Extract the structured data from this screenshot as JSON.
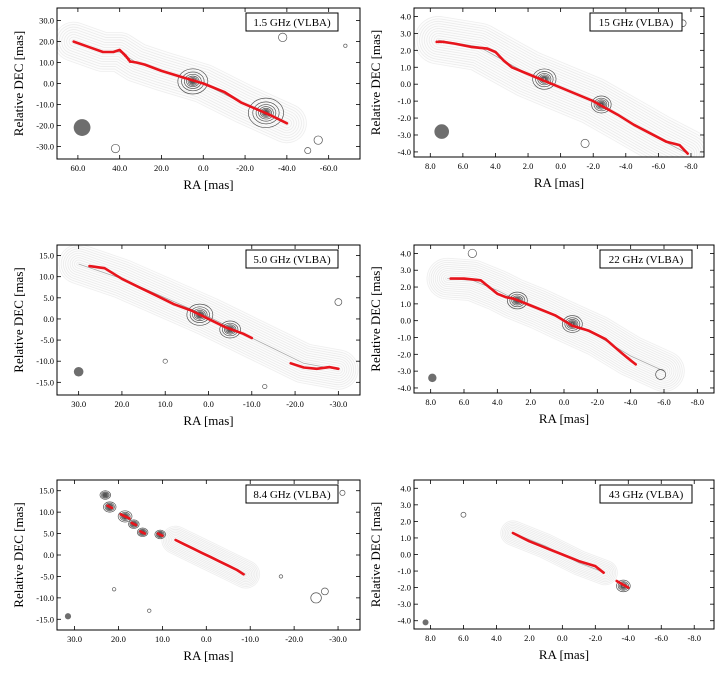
{
  "figure": {
    "xlabel": "RA [mas]",
    "ylabel": "Relative DEC [mas]"
  },
  "colors": {
    "ridge": "#e8141c",
    "contour": "#555555",
    "beam": "#6e6e6e",
    "axis": "#000000"
  },
  "chart_data": [
    {
      "type": "contour",
      "title": "1.5 GHz (VLBA)",
      "xlabel": "RA [mas]",
      "ylabel": "Relative DEC [mas]",
      "xlim": [
        70,
        -75
      ],
      "ylim": [
        -36,
        36
      ],
      "xticks": [
        60,
        40,
        20,
        0,
        -20,
        -40,
        -60
      ],
      "xtick_labels": [
        "60.0",
        "40.0",
        "20.0",
        "0.0",
        "-20.0",
        "-40.0",
        "-60.0"
      ],
      "yticks": [
        30,
        20,
        10,
        0,
        -10,
        -20,
        -30
      ],
      "ytick_labels": [
        "30.0",
        "20.0",
        "10.0",
        "0.0",
        "-10.0",
        "-20.0",
        "-30.0"
      ],
      "beam": {
        "x": 58,
        "y": -21,
        "size_mas": 8
      },
      "ridge_line": {
        "x": [
          62,
          55,
          48,
          43,
          40,
          37,
          35,
          32,
          28,
          20,
          10,
          0,
          -10,
          -18,
          -25,
          -32,
          -40
        ],
        "y": [
          20,
          17.5,
          15,
          15,
          16,
          13,
          10.5,
          10,
          9,
          6,
          3,
          0,
          -4,
          -9,
          -12,
          -15,
          -19
        ]
      },
      "ridge_gaps": [
        [
          38,
          35
        ]
      ],
      "jet": {
        "x": [
          62,
          48,
          40,
          32,
          20,
          0,
          -20,
          -40
        ],
        "y": [
          20,
          15,
          15,
          10,
          6,
          0,
          -10,
          -19
        ],
        "width": [
          9,
          7,
          5,
          7,
          10,
          10,
          9,
          7
        ]
      },
      "knots": [
        {
          "x": 5,
          "y": 1,
          "r": 6
        },
        {
          "x": -30,
          "y": -14,
          "r": 7
        }
      ],
      "islands": [
        {
          "x": -55,
          "y": -27,
          "r": 2
        },
        {
          "x": -50,
          "y": -32,
          "r": 1.5
        },
        {
          "x": -38,
          "y": 22,
          "r": 2
        },
        {
          "x": 42,
          "y": -31,
          "r": 2
        },
        {
          "x": -68,
          "y": 18,
          "r": 0.8
        }
      ],
      "levels": 8
    },
    {
      "type": "contour",
      "title": "15 GHz (VLBA)",
      "xlabel": "RA [mas]",
      "ylabel": "Relative DEC [mas]",
      "xlim": [
        9,
        -8.8
      ],
      "ylim": [
        -4.3,
        4.5
      ],
      "xticks": [
        8,
        6,
        4,
        2,
        0,
        -2,
        -4,
        -6,
        -8
      ],
      "xtick_labels": [
        "8.0",
        "6.0",
        "4.0",
        "2.0",
        "0.0",
        "-2.0",
        "-4.0",
        "-6.0",
        "-8.0"
      ],
      "yticks": [
        4,
        3,
        2,
        1,
        0,
        -1,
        -2,
        -3,
        -4
      ],
      "ytick_labels": [
        "4.0",
        "3.0",
        "2.0",
        "1.0",
        "0.0",
        "-1.0",
        "-2.0",
        "-3.0",
        "-4.0"
      ],
      "beam": {
        "x": 7.3,
        "y": -2.8,
        "size_mas": 0.9
      },
      "ridge_line": {
        "x": [
          7.2,
          6.5,
          5.5,
          4.5,
          4,
          3.5,
          3,
          2,
          0,
          -2,
          -3.5,
          -4.5,
          -5.5,
          -6.5,
          -7.3,
          -7.8
        ],
        "y": [
          2.5,
          2.4,
          2.2,
          2.1,
          1.9,
          1.4,
          1.0,
          0.6,
          -0.2,
          -1.0,
          -1.8,
          -2.4,
          -2.9,
          -3.4,
          -3.6,
          -4.1
        ]
      },
      "ridge_gaps": [
        [
          7.6,
          7.2
        ]
      ],
      "jet": {
        "x": [
          7.5,
          5,
          3.5,
          2,
          0,
          -2,
          -4,
          -6,
          -7.8
        ],
        "y": [
          2.6,
          2.2,
          1.4,
          0.6,
          -0.2,
          -1.0,
          -2.1,
          -3.2,
          -4.1
        ],
        "width": [
          0.9,
          1.2,
          1.5,
          1.5,
          1.4,
          1.3,
          1.2,
          1.0,
          0.6
        ]
      },
      "knots": [
        {
          "x": 1.0,
          "y": 0.3,
          "r": 0.6
        },
        {
          "x": -2.5,
          "y": -1.2,
          "r": 0.5
        }
      ],
      "islands": [
        {
          "x": -1.5,
          "y": -3.5,
          "r": 0.25
        },
        {
          "x": -7.5,
          "y": 3.6,
          "r": 0.2
        }
      ],
      "levels": 10
    },
    {
      "type": "contour",
      "title": "5.0 GHz (VLBA)",
      "xlabel": "RA [mas]",
      "ylabel": "Relative DEC [mas]",
      "xlim": [
        35,
        -35
      ],
      "ylim": [
        -18,
        17.5
      ],
      "xticks": [
        30,
        20,
        10,
        0,
        -10,
        -20,
        -30
      ],
      "xtick_labels": [
        "30.0",
        "20.0",
        "10.0",
        "0.0",
        "-10.0",
        "-20.0",
        "-30.0"
      ],
      "yticks": [
        15,
        10,
        5,
        0,
        -5,
        -10,
        -15
      ],
      "ytick_labels": [
        "15.0",
        "10.0",
        "5.0",
        "0.0",
        "-5.0",
        "-10.0",
        "-15.0"
      ],
      "beam": {
        "x": 30,
        "y": -12.5,
        "size_mas": 2.2
      },
      "ridge_line": {
        "x": [
          27.5,
          24,
          20,
          16,
          12,
          8,
          4,
          0,
          -4,
          -8,
          -10
        ],
        "y": [
          12.5,
          12,
          9.5,
          7.5,
          5.5,
          3.5,
          2,
          0,
          -2,
          -3.5,
          -4.5
        ]
      },
      "ridge_gaps": [],
      "ridge_line2": {
        "x": [
          -19,
          -22,
          -25,
          -28,
          -30
        ],
        "y": [
          -10.5,
          -11.5,
          -11.8,
          -11.4,
          -11.8
        ]
      },
      "jet": {
        "x": [
          30,
          20,
          10,
          0,
          -8,
          -15,
          -22,
          -30
        ],
        "y": [
          13,
          9.5,
          5,
          0.5,
          -3.5,
          -7,
          -10.5,
          -12
        ],
        "width": [
          3.5,
          4,
          4.5,
          5,
          5,
          3.5,
          3,
          2.5
        ]
      },
      "knots": [
        {
          "x": 2,
          "y": 1,
          "r": 2.5
        },
        {
          "x": -5,
          "y": -2.5,
          "r": 2
        }
      ],
      "islands": [
        {
          "x": -30,
          "y": 4,
          "r": 0.8
        },
        {
          "x": 10,
          "y": -10,
          "r": 0.5
        },
        {
          "x": -13,
          "y": -16,
          "r": 0.5
        }
      ],
      "levels": 9
    },
    {
      "type": "contour",
      "title": "22 GHz (VLBA)",
      "xlabel": "RA [mas]",
      "ylabel": "Relative DEC [mas]",
      "xlim": [
        9,
        -9
      ],
      "ylim": [
        -4.3,
        4.5
      ],
      "xticks": [
        8,
        6,
        4,
        2,
        0,
        -2,
        -4,
        -6,
        -8
      ],
      "xtick_labels": [
        "8.0",
        "6.0",
        "4.0",
        "2.0",
        "0.0",
        "-2.0",
        "-4.0",
        "-6.0",
        "-8.0"
      ],
      "yticks": [
        4,
        3,
        2,
        1,
        0,
        -1,
        -2,
        -3,
        -4
      ],
      "ytick_labels": [
        "4.0",
        "3.0",
        "2.0",
        "1.0",
        "0.0",
        "-1.0",
        "-2.0",
        "-3.0",
        "-4.0"
      ],
      "beam": {
        "x": 7.9,
        "y": -3.4,
        "size_mas": 0.5
      },
      "ridge_line": {
        "x": [
          6.8,
          6,
          5,
          4.5,
          4,
          3.5,
          3,
          2,
          0.5,
          -0.5,
          -1.5,
          -2.5,
          -3.2,
          -3.8,
          -4.3
        ],
        "y": [
          2.5,
          2.5,
          2.4,
          2.0,
          1.6,
          1.4,
          1.3,
          0.9,
          0.3,
          -0.3,
          -0.6,
          -1.1,
          -1.7,
          -2.2,
          -2.6
        ]
      },
      "ridge_gaps": [],
      "jet": {
        "x": [
          7,
          5.5,
          4,
          3,
          1.5,
          0,
          -2,
          -4,
          -6
        ],
        "y": [
          2.5,
          2.4,
          1.8,
          1.3,
          0.7,
          0,
          -0.9,
          -2.1,
          -3.0
        ],
        "width": [
          1.3,
          1.2,
          0.9,
          1.1,
          1.3,
          1.3,
          1.2,
          1.0,
          0.6
        ]
      },
      "knots": [
        {
          "x": 2.8,
          "y": 1.2,
          "r": 0.5
        },
        {
          "x": -0.5,
          "y": -0.2,
          "r": 0.5
        }
      ],
      "islands": [
        {
          "x": 5.5,
          "y": 4.0,
          "r": 0.25
        },
        {
          "x": -5.8,
          "y": -3.2,
          "r": 0.3
        }
      ],
      "levels": 10
    },
    {
      "type": "contour",
      "title": "8.4 GHz (VLBA)",
      "xlabel": "RA [mas]",
      "ylabel": "Relative DEC [mas]",
      "xlim": [
        34,
        -35
      ],
      "ylim": [
        -17.5,
        17.5
      ],
      "xticks": [
        30,
        20,
        10,
        0,
        -10,
        -20,
        -30
      ],
      "xtick_labels": [
        "30.0",
        "20.0",
        "10.0",
        "0.0",
        "-10.0",
        "-20.0",
        "-30.0"
      ],
      "yticks": [
        15,
        10,
        5,
        0,
        -5,
        -10,
        -15
      ],
      "ytick_labels": [
        "15.0",
        "10.0",
        "5.0",
        "0.0",
        "-5.0",
        "-10.0",
        "-15.0"
      ],
      "beam": {
        "x": 31.5,
        "y": -14.3,
        "size_mas": 1.4
      },
      "ridge_line": {
        "x": [
          7,
          5,
          3,
          1,
          -1,
          -3,
          -5,
          -7,
          -8.5
        ],
        "y": [
          3.5,
          2.5,
          1.5,
          0.5,
          -0.5,
          -1.5,
          -2.5,
          -3.5,
          -4.5
        ]
      },
      "ridge_gaps": [],
      "ridge_segments": [
        {
          "x": [
            22.5,
            21.5
          ],
          "y": [
            11.5,
            11
          ]
        },
        {
          "x": [
            19.5,
            18.5,
            17.5
          ],
          "y": [
            9.5,
            9,
            8.5
          ]
        },
        {
          "x": [
            17,
            16
          ],
          "y": [
            7.5,
            7
          ]
        },
        {
          "x": [
            15,
            14
          ],
          "y": [
            5.5,
            5
          ]
        },
        {
          "x": [
            11,
            10
          ],
          "y": [
            5,
            4.5
          ]
        }
      ],
      "jet": {
        "x": [
          7,
          3,
          0,
          -3,
          -6,
          -9
        ],
        "y": [
          3.5,
          1.5,
          0,
          -1.5,
          -3,
          -4.5
        ],
        "width": [
          3.5,
          3.5,
          3.5,
          3,
          2.5,
          2
        ]
      },
      "knots": [
        {
          "x": 22,
          "y": 11.2,
          "r": 1.2
        },
        {
          "x": 18.5,
          "y": 9,
          "r": 1.3
        },
        {
          "x": 16.5,
          "y": 7.2,
          "r": 1.0
        },
        {
          "x": 14.5,
          "y": 5.3,
          "r": 1.0
        },
        {
          "x": 10.5,
          "y": 4.8,
          "r": 1.0
        },
        {
          "x": 23,
          "y": 14,
          "r": 1.0
        }
      ],
      "islands": [
        {
          "x": -25,
          "y": -10,
          "r": 1.2
        },
        {
          "x": -27,
          "y": -8.5,
          "r": 0.8
        },
        {
          "x": 13,
          "y": -13,
          "r": 0.4
        },
        {
          "x": -31,
          "y": 14.5,
          "r": 0.6
        },
        {
          "x": -17,
          "y": -5,
          "r": 0.4
        },
        {
          "x": 21,
          "y": -8,
          "r": 0.4
        }
      ],
      "levels": 9
    },
    {
      "type": "contour",
      "title": "43 GHz (VLBA)",
      "xlabel": "RA [mas]",
      "ylabel": "Relative DEC [mas]",
      "xlim": [
        9,
        -9.2
      ],
      "ylim": [
        -4.5,
        4.5
      ],
      "xticks": [
        8,
        6,
        4,
        2,
        0,
        -2,
        -4,
        -6,
        -8
      ],
      "xtick_labels": [
        "8.0",
        "6.0",
        "4.0",
        "2.0",
        "0.0",
        "-2.0",
        "-4.0",
        "-6.0",
        "-8.0"
      ],
      "yticks": [
        4,
        3,
        2,
        1,
        0,
        -1,
        -2,
        -3,
        -4
      ],
      "ytick_labels": [
        "4.0",
        "3.0",
        "2.0",
        "1.0",
        "0.0",
        "-1.0",
        "-2.0",
        "-3.0",
        "-4.0"
      ],
      "beam": {
        "x": 8.3,
        "y": -4.1,
        "size_mas": 0.3
      },
      "ridge_line": {
        "x": [
          3,
          2,
          1,
          0,
          -1,
          -2,
          -2.5
        ],
        "y": [
          1.3,
          0.8,
          0.4,
          0,
          -0.4,
          -0.7,
          -1.1
        ]
      },
      "ridge_gaps": [],
      "ridge_line2": {
        "x": [
          -3.3,
          -4.0
        ],
        "y": [
          -1.6,
          -2.0
        ]
      },
      "jet": {
        "x": [
          3,
          1,
          -1,
          -2.6
        ],
        "y": [
          1.3,
          0.5,
          -0.5,
          -1.1
        ],
        "width": [
          0.7,
          0.8,
          0.8,
          0.5
        ]
      },
      "knots": [
        {
          "x": -3.7,
          "y": -1.9,
          "r": 0.35
        }
      ],
      "islands": [
        {
          "x": 6.0,
          "y": 2.4,
          "r": 0.15
        }
      ],
      "levels": 8
    }
  ]
}
